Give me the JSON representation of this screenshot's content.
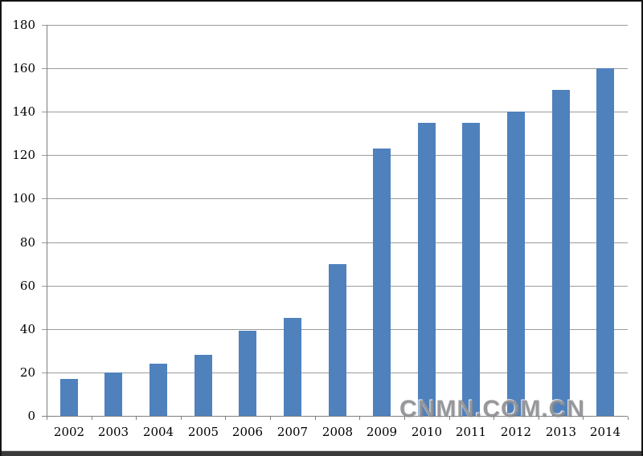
{
  "watermark": {
    "text": "CNMN.COM.CN"
  },
  "chart_data": {
    "type": "bar",
    "title": "",
    "xlabel": "",
    "ylabel": "",
    "categories": [
      "2002",
      "2003",
      "2004",
      "2005",
      "2006",
      "2007",
      "2008",
      "2009",
      "2010",
      "2011",
      "2012",
      "2013",
      "2014"
    ],
    "values": [
      17,
      20,
      24,
      28,
      39,
      45,
      70,
      123,
      135,
      135,
      140,
      150,
      160
    ],
    "ylim": [
      0,
      180
    ],
    "ytick_step": 20,
    "yticks": [
      0,
      20,
      40,
      60,
      80,
      100,
      120,
      140,
      160,
      180
    ],
    "grid": true,
    "legend": false,
    "bar_color": "#4F81BD",
    "gridline_color": "#9B9B9B",
    "axis_color": "#7F7F7F",
    "label_color": "#000000"
  }
}
